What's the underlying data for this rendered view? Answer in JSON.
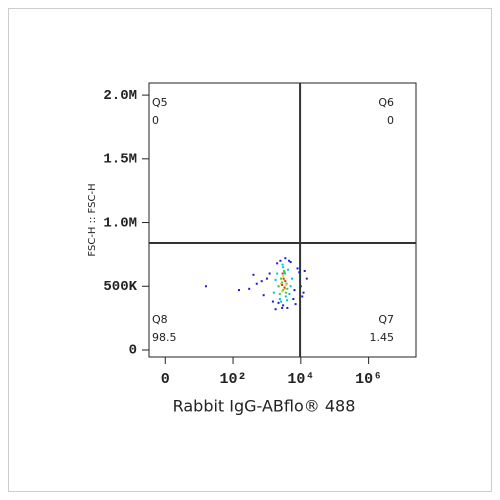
{
  "chart_data": {
    "type": "scatter",
    "xlabel": "Rabbit IgG-ABflo® 488",
    "ylabel": "FSC-H :: FSC-H",
    "xscale": "biexponential",
    "xlim": [
      -24,
      25000000
    ],
    "xticks": [
      0,
      {
        "value": 100,
        "label": "10²"
      },
      {
        "value": 10000,
        "label": "10⁴"
      },
      {
        "value": 1000000,
        "label": "10⁶"
      }
    ],
    "ylim": [
      -55000,
      2095000
    ],
    "yticks": [
      0,
      {
        "value": 500000,
        "label": "500K"
      },
      {
        "value": 1000000,
        "label": "1.0M"
      },
      {
        "value": 1500000,
        "label": "1.5M"
      },
      {
        "value": 2000000,
        "label": "2.0M"
      }
    ],
    "gate_x": 9500,
    "gate_y": 840000,
    "quadrants": [
      {
        "name": "Q5",
        "value": 0
      },
      {
        "name": "Q6",
        "value": 0
      },
      {
        "name": "Q7",
        "value": 1.45
      },
      {
        "name": "Q8",
        "value": 98.5
      }
    ],
    "series": [
      {
        "color": "#1a1ad0",
        "x": [
          300,
          500,
          800,
          1200,
          1500,
          2000,
          2500,
          3000,
          4000,
          5000,
          6000,
          8000,
          10000,
          12000,
          15000,
          60,
          150,
          1000,
          1800,
          3500,
          7000,
          9000,
          11000,
          700,
          2200,
          4500,
          13000,
          400,
          2800,
          6500
        ],
        "values": [
          480000,
          520000,
          430000,
          600000,
          380000,
          680000,
          700000,
          350000,
          330000,
          690000,
          400000,
          640000,
          500000,
          450000,
          560000,
          500000,
          470000,
          560000,
          320000,
          720000,
          360000,
          610000,
          420000,
          540000,
          370000,
          700000,
          620000,
          590000,
          330000,
          470000
        ]
      },
      {
        "color": "#00c0e0",
        "x": [
          1600,
          2000,
          2400,
          3000,
          3600,
          4200,
          5000,
          1800,
          2600,
          3300,
          4600,
          5500,
          2200,
          3900,
          2900
        ],
        "values": [
          450000,
          600000,
          400000,
          650000,
          420000,
          630000,
          500000,
          550000,
          380000,
          610000,
          440000,
          560000,
          500000,
          390000,
          670000
        ]
      },
      {
        "color": "#30d040",
        "x": [
          2200,
          2600,
          3000,
          3400,
          3800,
          2400,
          3200,
          4000,
          2800,
          3600
        ],
        "values": [
          500000,
          560000,
          470000,
          600000,
          520000,
          440000,
          620000,
          480000,
          530000,
          450000
        ]
      },
      {
        "color": "#e8d020",
        "x": [
          2600,
          3000,
          3400,
          2800,
          3200,
          3700
        ],
        "values": [
          520000,
          580000,
          480000,
          460000,
          550000,
          510000
        ]
      },
      {
        "color": "#e03020",
        "x": [
          2800,
          3100,
          3300,
          2900,
          3500
        ],
        "values": [
          510000,
          560000,
          490000,
          600000,
          540000
        ]
      }
    ]
  }
}
